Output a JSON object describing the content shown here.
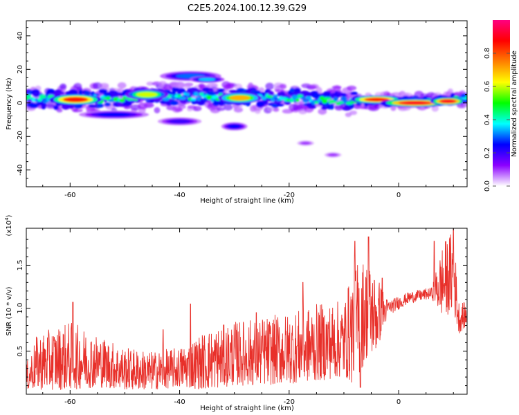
{
  "title": "C2E5.2024.100.12.39.G29",
  "chart_data": [
    {
      "type": "heatmap",
      "xlabel": "Height of straight line (km)",
      "ylabel": "Frequency (Hz)",
      "xlim": [
        -68,
        12.5
      ],
      "ylim": [
        -50,
        49
      ],
      "x_ticks": [
        -60,
        -40,
        -20,
        0
      ],
      "x_tick_labels": [
        "-60",
        "-40",
        "-20",
        "0"
      ],
      "y_ticks": [
        -40,
        -20,
        0,
        20,
        40
      ],
      "y_tick_labels": [
        "-40",
        "-20",
        "0",
        "20",
        "40"
      ],
      "colorbar": {
        "label": "Normalized spectral amplitude",
        "range": [
          0,
          1
        ],
        "ticks": [
          0.0,
          0.2,
          0.4,
          0.6,
          0.8
        ],
        "tick_labels": [
          "0.0",
          "0.2",
          "0.4",
          "0.6",
          "0.8"
        ],
        "colors": [
          "#ffffff",
          "#8b00ff",
          "#0000ff",
          "#00ffff",
          "#00ff00",
          "#ffff00",
          "#ff7f00",
          "#ff0000",
          "#ff0080"
        ]
      },
      "main_band": {
        "description_points": [
          {
            "x": -66,
            "f": 2
          },
          {
            "x": -60,
            "f": 2
          },
          {
            "x": -50,
            "f": 3
          },
          {
            "x": -40,
            "f": 4
          },
          {
            "x": -30,
            "f": 3
          },
          {
            "x": -20,
            "f": 3
          },
          {
            "x": -10,
            "f": 1
          },
          {
            "x": 0,
            "f": 1
          },
          {
            "x": 6,
            "f": 1
          },
          {
            "x": 12,
            "f": 3
          }
        ]
      },
      "blobs": [
        {
          "x": -59,
          "f": 2,
          "w": 3,
          "h": 2,
          "a": 0.85
        },
        {
          "x": -46,
          "f": 5,
          "w": 2.5,
          "h": 2,
          "a": 0.6
        },
        {
          "x": -29,
          "f": 3,
          "w": 2.5,
          "h": 2,
          "a": 0.7
        },
        {
          "x": -4,
          "f": 2,
          "w": 3,
          "h": 1.5,
          "a": 0.85
        },
        {
          "x": 3,
          "f": 0,
          "w": 4,
          "h": 1.5,
          "a": 0.9
        },
        {
          "x": 9,
          "f": 1,
          "w": 2,
          "h": 1.5,
          "a": 0.9
        },
        {
          "x": -38,
          "f": 16,
          "w": 3.5,
          "h": 1.8,
          "a": 0.3
        },
        {
          "x": -35,
          "f": 14,
          "w": 2,
          "h": 1.2,
          "a": 0.35
        },
        {
          "x": -30,
          "f": -14,
          "w": 1.5,
          "h": 1.5,
          "a": 0.25
        },
        {
          "x": -40,
          "f": -11,
          "w": 2.5,
          "h": 1.5,
          "a": 0.2
        },
        {
          "x": -52,
          "f": -7,
          "w": 4,
          "h": 1.5,
          "a": 0.25
        },
        {
          "x": -12,
          "f": -31,
          "w": 1,
          "h": 1,
          "a": 0.1
        },
        {
          "x": -17,
          "f": -24,
          "w": 1,
          "h": 1,
          "a": 0.1
        }
      ]
    },
    {
      "type": "line",
      "xlabel": "Height of straight line (km)",
      "ylabel": "SNR (10 * v/v)",
      "y_scale_label": "(x10^4)",
      "y_scale_base": "(x10",
      "y_scale_exp": "4",
      "y_scale_close": ")",
      "xlim": [
        -68,
        12.5
      ],
      "ylim": [
        0,
        1.93
      ],
      "x_ticks": [
        -60,
        -40,
        -20,
        0
      ],
      "x_tick_labels": [
        "-60",
        "-40",
        "-20",
        "0"
      ],
      "y_ticks": [
        0.5,
        1.0,
        1.5
      ],
      "y_tick_labels": [
        "0.5",
        "1.0",
        "1.5"
      ],
      "color": "#e8302a",
      "envelope": [
        {
          "x": -68,
          "lo": 0.05,
          "hi": 0.35
        },
        {
          "x": -66,
          "lo": 0.05,
          "hi": 0.7
        },
        {
          "x": -60,
          "lo": 0.05,
          "hi": 0.85
        },
        {
          "x": -55,
          "lo": 0.08,
          "hi": 0.7
        },
        {
          "x": -50,
          "lo": 0.05,
          "hi": 0.55
        },
        {
          "x": -45,
          "lo": 0.05,
          "hi": 0.5
        },
        {
          "x": -40,
          "lo": 0.08,
          "hi": 0.55
        },
        {
          "x": -35,
          "lo": 0.05,
          "hi": 0.75
        },
        {
          "x": -30,
          "lo": 0.1,
          "hi": 0.85
        },
        {
          "x": -25,
          "lo": 0.1,
          "hi": 0.9
        },
        {
          "x": -20,
          "lo": 0.12,
          "hi": 0.95
        },
        {
          "x": -15,
          "lo": 0.15,
          "hi": 1.05
        },
        {
          "x": -10,
          "lo": 0.2,
          "hi": 1.1
        },
        {
          "x": -8,
          "lo": 0.1,
          "hi": 1.55
        },
        {
          "x": -6,
          "lo": 0.4,
          "hi": 1.6
        },
        {
          "x": -4,
          "lo": 0.5,
          "hi": 1.4
        },
        {
          "x": -2,
          "lo": 0.9,
          "hi": 1.1
        },
        {
          "x": 2,
          "lo": 1.05,
          "hi": 1.2
        },
        {
          "x": 6,
          "lo": 1.1,
          "hi": 1.25
        },
        {
          "x": 8,
          "lo": 0.9,
          "hi": 1.75
        },
        {
          "x": 10,
          "lo": 0.95,
          "hi": 1.93
        },
        {
          "x": 11,
          "lo": 0.7,
          "hi": 1.1
        },
        {
          "x": 12.5,
          "lo": 0.8,
          "hi": 1.05
        }
      ],
      "spikes": [
        {
          "x": -59.5,
          "y": 1.07
        },
        {
          "x": -43,
          "y": 0.75
        },
        {
          "x": -38,
          "y": 1.05
        },
        {
          "x": -26,
          "y": 0.95
        },
        {
          "x": -17.5,
          "y": 1.3
        },
        {
          "x": -8,
          "y": 1.78
        },
        {
          "x": -5.5,
          "y": 1.83
        },
        {
          "x": -3,
          "y": 1.35
        },
        {
          "x": 6.5,
          "y": 1.78
        },
        {
          "x": 10,
          "y": 1.92
        },
        {
          "x": -7,
          "y": 0.08
        }
      ]
    }
  ]
}
